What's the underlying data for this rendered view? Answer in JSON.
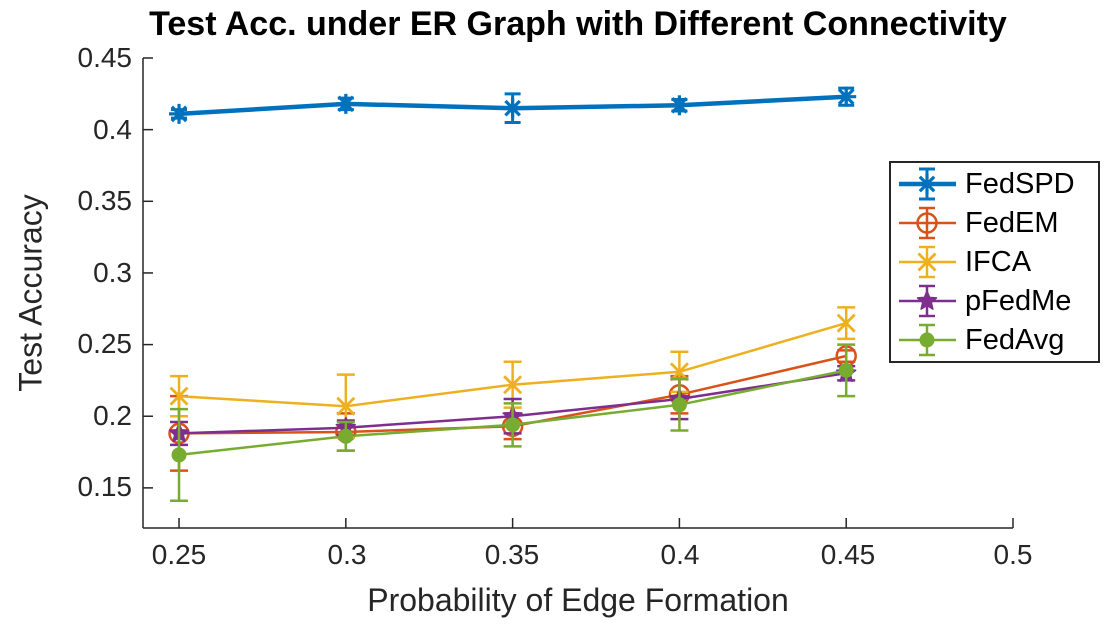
{
  "chart_data": {
    "type": "line",
    "title": "Test Acc. under ER Graph with Different Connectivity",
    "xlabel": "Probability of Edge Formation",
    "ylabel": "Test Accuracy",
    "xlim": [
      0.2392,
      0.5
    ],
    "ylim": [
      0.122,
      0.45
    ],
    "grid": false,
    "legend_position": "upper-right",
    "x_ticks": {
      "values": [
        0.25,
        0.3,
        0.35,
        0.4,
        0.45,
        0.5
      ],
      "labels": [
        "0.25",
        "0.3",
        "0.35",
        "0.4",
        "0.45",
        "0.5"
      ]
    },
    "y_ticks": {
      "values": [
        0.45,
        0.4,
        0.35,
        0.3,
        0.25,
        0.2,
        0.15
      ],
      "labels": [
        "0.45",
        "0.4",
        "0.35",
        "0.3",
        "0.25",
        "0.2",
        "0.15"
      ]
    },
    "x": [
      0.25,
      0.3,
      0.35,
      0.4,
      0.45
    ],
    "series": [
      {
        "name": "FedSPD",
        "color": "#0072BD",
        "marker": "asterisk",
        "line_width": 4.5,
        "values": [
          0.411,
          0.418,
          0.415,
          0.417,
          0.423
        ],
        "errors": [
          0.003,
          0.004,
          0.01,
          0.004,
          0.006
        ]
      },
      {
        "name": "FedEM",
        "color": "#D95319",
        "marker": "open-circle",
        "line_width": 2.5,
        "values": [
          0.188,
          0.189,
          0.193,
          0.215,
          0.242
        ],
        "errors": [
          0.026,
          0.013,
          0.009,
          0.013,
          0.004
        ]
      },
      {
        "name": "IFCA",
        "color": "#EDB120",
        "marker": "x",
        "line_width": 2.5,
        "values": [
          0.214,
          0.207,
          0.222,
          0.231,
          0.265
        ],
        "errors": [
          0.014,
          0.022,
          0.016,
          0.014,
          0.011
        ]
      },
      {
        "name": "pFedMe",
        "color": "#7E2F8E",
        "marker": "star",
        "line_width": 2.5,
        "values": [
          0.188,
          0.192,
          0.2,
          0.212,
          0.23
        ],
        "errors": [
          0.008,
          0.005,
          0.012,
          0.014,
          0.005
        ]
      },
      {
        "name": "FedAvg",
        "color": "#77AC30",
        "marker": "filled-circle",
        "line_width": 2.5,
        "values": [
          0.173,
          0.186,
          0.194,
          0.208,
          0.232
        ],
        "errors": [
          0.032,
          0.01,
          0.015,
          0.018,
          0.018
        ]
      }
    ],
    "axis_color": "#262626"
  }
}
